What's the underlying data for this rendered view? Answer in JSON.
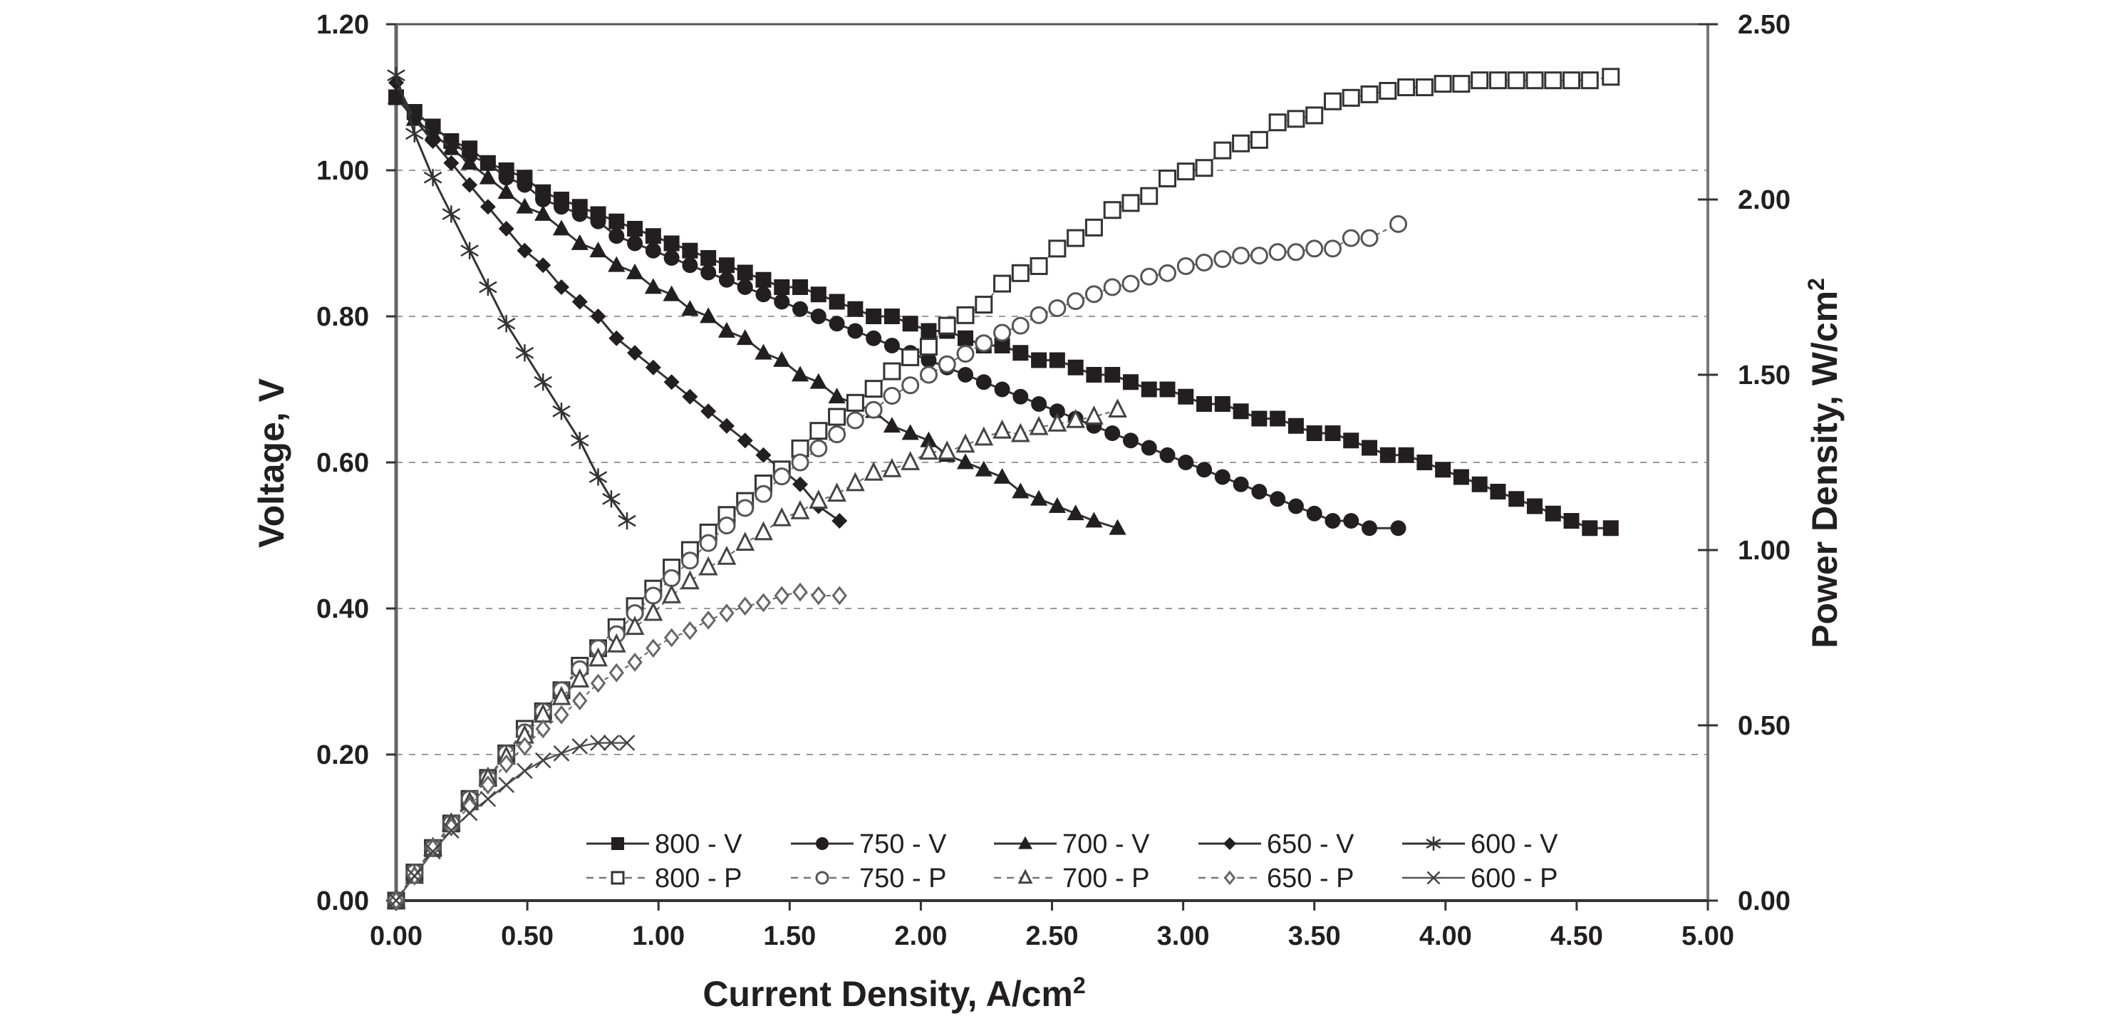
{
  "chart_data": {
    "type": "line",
    "title": "",
    "xlabel": "Current Density, A/cm",
    "xlabel_sup": "2",
    "ylabel": "Voltage, V",
    "y2label": "Power Density, W/cm",
    "y2label_sup": "2",
    "xlim": [
      0,
      5
    ],
    "ylim": [
      0,
      1.2
    ],
    "y2lim": [
      0,
      2.5
    ],
    "grid": "horizontal-dashed",
    "legend_position": "bottom-center",
    "x_ticks": [
      "0.00",
      "0.50",
      "1.00",
      "1.50",
      "2.00",
      "2.50",
      "3.00",
      "3.50",
      "4.00",
      "4.50",
      "5.00"
    ],
    "y_ticks": [
      "0.00",
      "0.20",
      "0.40",
      "0.60",
      "0.80",
      "1.00",
      "1.20"
    ],
    "y2_ticks": [
      "0.00",
      "0.50",
      "1.00",
      "1.50",
      "2.00",
      "2.50"
    ],
    "series": [
      {
        "name": "800 - V",
        "axis": "left",
        "marker": "square-filled",
        "line": "solid",
        "x": [
          0,
          0.07,
          0.14,
          0.21,
          0.28,
          0.35,
          0.42,
          0.49,
          0.56,
          0.63,
          0.7,
          0.77,
          0.84,
          0.91,
          0.98,
          1.05,
          1.12,
          1.19,
          1.26,
          1.33,
          1.4,
          1.47,
          1.54,
          1.61,
          1.68,
          1.75,
          1.82,
          1.89,
          1.96,
          2.03,
          2.1,
          2.17,
          2.24,
          2.31,
          2.38,
          2.45,
          2.52,
          2.59,
          2.66,
          2.73,
          2.8,
          2.87,
          2.94,
          3.01,
          3.08,
          3.15,
          3.22,
          3.29,
          3.36,
          3.43,
          3.5,
          3.57,
          3.64,
          3.71,
          3.78,
          3.85,
          3.92,
          3.99,
          4.06,
          4.13,
          4.2,
          4.27,
          4.34,
          4.41,
          4.48,
          4.55,
          4.63
        ],
        "y": [
          1.1,
          1.08,
          1.06,
          1.04,
          1.03,
          1.01,
          1.0,
          0.99,
          0.97,
          0.96,
          0.95,
          0.94,
          0.93,
          0.92,
          0.91,
          0.9,
          0.89,
          0.88,
          0.87,
          0.86,
          0.85,
          0.84,
          0.84,
          0.83,
          0.82,
          0.81,
          0.8,
          0.8,
          0.79,
          0.78,
          0.78,
          0.77,
          0.76,
          0.76,
          0.75,
          0.74,
          0.74,
          0.73,
          0.72,
          0.72,
          0.71,
          0.7,
          0.7,
          0.69,
          0.68,
          0.68,
          0.67,
          0.66,
          0.66,
          0.65,
          0.64,
          0.64,
          0.63,
          0.62,
          0.61,
          0.61,
          0.6,
          0.59,
          0.58,
          0.57,
          0.56,
          0.55,
          0.54,
          0.53,
          0.52,
          0.51,
          0.51
        ]
      },
      {
        "name": "750 - V",
        "axis": "left",
        "marker": "circle-filled",
        "line": "solid",
        "x": [
          0,
          0.07,
          0.14,
          0.21,
          0.28,
          0.35,
          0.42,
          0.49,
          0.56,
          0.63,
          0.7,
          0.77,
          0.84,
          0.91,
          0.98,
          1.05,
          1.12,
          1.19,
          1.26,
          1.33,
          1.4,
          1.47,
          1.54,
          1.61,
          1.68,
          1.75,
          1.82,
          1.89,
          1.96,
          2.03,
          2.1,
          2.17,
          2.24,
          2.31,
          2.38,
          2.45,
          2.52,
          2.59,
          2.66,
          2.73,
          2.8,
          2.87,
          2.94,
          3.01,
          3.08,
          3.15,
          3.22,
          3.29,
          3.36,
          3.43,
          3.5,
          3.57,
          3.64,
          3.71,
          3.82
        ],
        "y": [
          1.1,
          1.08,
          1.06,
          1.04,
          1.02,
          1.01,
          0.99,
          0.98,
          0.96,
          0.95,
          0.94,
          0.93,
          0.91,
          0.9,
          0.89,
          0.88,
          0.87,
          0.86,
          0.85,
          0.84,
          0.83,
          0.82,
          0.81,
          0.8,
          0.79,
          0.78,
          0.77,
          0.76,
          0.75,
          0.74,
          0.73,
          0.72,
          0.71,
          0.7,
          0.69,
          0.68,
          0.67,
          0.66,
          0.65,
          0.64,
          0.63,
          0.62,
          0.61,
          0.6,
          0.59,
          0.58,
          0.57,
          0.56,
          0.55,
          0.54,
          0.53,
          0.52,
          0.52,
          0.51,
          0.51
        ]
      },
      {
        "name": "700 - V",
        "axis": "left",
        "marker": "triangle-filled",
        "line": "solid",
        "x": [
          0,
          0.07,
          0.14,
          0.21,
          0.28,
          0.35,
          0.42,
          0.49,
          0.56,
          0.63,
          0.7,
          0.77,
          0.84,
          0.91,
          0.98,
          1.05,
          1.12,
          1.19,
          1.26,
          1.33,
          1.4,
          1.47,
          1.54,
          1.61,
          1.68,
          1.75,
          1.82,
          1.89,
          1.96,
          2.03,
          2.1,
          2.17,
          2.24,
          2.31,
          2.38,
          2.45,
          2.52,
          2.59,
          2.66,
          2.75
        ],
        "y": [
          1.1,
          1.07,
          1.05,
          1.03,
          1.01,
          0.99,
          0.97,
          0.95,
          0.94,
          0.92,
          0.9,
          0.89,
          0.87,
          0.86,
          0.84,
          0.83,
          0.81,
          0.8,
          0.78,
          0.77,
          0.75,
          0.74,
          0.72,
          0.71,
          0.69,
          0.68,
          0.67,
          0.65,
          0.64,
          0.63,
          0.61,
          0.6,
          0.59,
          0.58,
          0.56,
          0.55,
          0.54,
          0.53,
          0.52,
          0.51
        ]
      },
      {
        "name": "650 - V",
        "axis": "left",
        "marker": "diamond-filled",
        "line": "solid",
        "x": [
          0,
          0.07,
          0.14,
          0.21,
          0.28,
          0.35,
          0.42,
          0.49,
          0.56,
          0.63,
          0.7,
          0.77,
          0.84,
          0.91,
          0.98,
          1.05,
          1.12,
          1.19,
          1.26,
          1.33,
          1.4,
          1.47,
          1.54,
          1.61,
          1.69
        ],
        "y": [
          1.12,
          1.07,
          1.04,
          1.01,
          0.98,
          0.95,
          0.92,
          0.89,
          0.87,
          0.84,
          0.82,
          0.8,
          0.77,
          0.75,
          0.73,
          0.71,
          0.69,
          0.67,
          0.65,
          0.63,
          0.61,
          0.59,
          0.57,
          0.54,
          0.52
        ]
      },
      {
        "name": "600 - V",
        "axis": "left",
        "marker": "star",
        "line": "solid",
        "x": [
          0,
          0.07,
          0.14,
          0.21,
          0.28,
          0.35,
          0.42,
          0.49,
          0.56,
          0.63,
          0.7,
          0.77,
          0.82,
          0.88
        ],
        "y": [
          1.13,
          1.05,
          0.99,
          0.94,
          0.89,
          0.84,
          0.79,
          0.75,
          0.71,
          0.67,
          0.63,
          0.58,
          0.55,
          0.52
        ]
      },
      {
        "name": "800 - P",
        "axis": "right",
        "marker": "square-open",
        "line": "dashed",
        "x": [
          0,
          0.07,
          0.14,
          0.21,
          0.28,
          0.35,
          0.42,
          0.49,
          0.56,
          0.63,
          0.7,
          0.77,
          0.84,
          0.91,
          0.98,
          1.05,
          1.12,
          1.19,
          1.26,
          1.33,
          1.4,
          1.47,
          1.54,
          1.61,
          1.68,
          1.75,
          1.82,
          1.89,
          1.96,
          2.03,
          2.1,
          2.17,
          2.24,
          2.31,
          2.38,
          2.45,
          2.52,
          2.59,
          2.66,
          2.73,
          2.8,
          2.87,
          2.94,
          3.01,
          3.08,
          3.15,
          3.22,
          3.29,
          3.36,
          3.43,
          3.5,
          3.57,
          3.64,
          3.71,
          3.78,
          3.85,
          3.92,
          3.99,
          4.06,
          4.13,
          4.2,
          4.27,
          4.34,
          4.41,
          4.48,
          4.55,
          4.63
        ],
        "y": [
          0,
          0.08,
          0.15,
          0.22,
          0.29,
          0.35,
          0.42,
          0.49,
          0.54,
          0.6,
          0.67,
          0.72,
          0.78,
          0.84,
          0.89,
          0.95,
          1.0,
          1.05,
          1.1,
          1.14,
          1.19,
          1.23,
          1.29,
          1.34,
          1.38,
          1.42,
          1.46,
          1.51,
          1.55,
          1.58,
          1.64,
          1.67,
          1.7,
          1.76,
          1.79,
          1.81,
          1.86,
          1.89,
          1.92,
          1.97,
          1.99,
          2.01,
          2.06,
          2.08,
          2.09,
          2.14,
          2.16,
          2.17,
          2.22,
          2.23,
          2.24,
          2.28,
          2.29,
          2.3,
          2.31,
          2.32,
          2.32,
          2.33,
          2.33,
          2.34,
          2.34,
          2.34,
          2.34,
          2.34,
          2.34,
          2.34,
          2.35
        ]
      },
      {
        "name": "750 - P",
        "axis": "right",
        "marker": "circle-open",
        "line": "dashed",
        "x": [
          0,
          0.07,
          0.14,
          0.21,
          0.28,
          0.35,
          0.42,
          0.49,
          0.56,
          0.63,
          0.7,
          0.77,
          0.84,
          0.91,
          0.98,
          1.05,
          1.12,
          1.19,
          1.26,
          1.33,
          1.4,
          1.47,
          1.54,
          1.61,
          1.68,
          1.75,
          1.82,
          1.89,
          1.96,
          2.03,
          2.1,
          2.17,
          2.24,
          2.31,
          2.38,
          2.45,
          2.52,
          2.59,
          2.66,
          2.73,
          2.8,
          2.87,
          2.94,
          3.01,
          3.08,
          3.15,
          3.22,
          3.29,
          3.36,
          3.43,
          3.5,
          3.57,
          3.64,
          3.71,
          3.82
        ],
        "y": [
          0,
          0.08,
          0.15,
          0.22,
          0.29,
          0.35,
          0.42,
          0.48,
          0.54,
          0.6,
          0.66,
          0.72,
          0.76,
          0.82,
          0.87,
          0.92,
          0.97,
          1.02,
          1.07,
          1.12,
          1.16,
          1.21,
          1.25,
          1.29,
          1.33,
          1.37,
          1.4,
          1.44,
          1.47,
          1.5,
          1.53,
          1.56,
          1.59,
          1.62,
          1.64,
          1.67,
          1.69,
          1.71,
          1.73,
          1.75,
          1.76,
          1.78,
          1.79,
          1.81,
          1.82,
          1.83,
          1.84,
          1.84,
          1.85,
          1.85,
          1.86,
          1.86,
          1.89,
          1.89,
          1.93
        ]
      },
      {
        "name": "700 - P",
        "axis": "right",
        "marker": "triangle-open",
        "line": "dashed",
        "x": [
          0,
          0.07,
          0.14,
          0.21,
          0.28,
          0.35,
          0.42,
          0.49,
          0.56,
          0.63,
          0.7,
          0.77,
          0.84,
          0.91,
          0.98,
          1.05,
          1.12,
          1.19,
          1.26,
          1.33,
          1.4,
          1.47,
          1.54,
          1.61,
          1.68,
          1.75,
          1.82,
          1.89,
          1.96,
          2.03,
          2.1,
          2.17,
          2.24,
          2.31,
          2.38,
          2.45,
          2.52,
          2.59,
          2.66,
          2.75
        ],
        "y": [
          0,
          0.07,
          0.15,
          0.22,
          0.28,
          0.35,
          0.41,
          0.47,
          0.53,
          0.58,
          0.63,
          0.69,
          0.73,
          0.78,
          0.82,
          0.87,
          0.91,
          0.95,
          0.98,
          1.02,
          1.05,
          1.09,
          1.11,
          1.14,
          1.16,
          1.19,
          1.22,
          1.23,
          1.25,
          1.28,
          1.28,
          1.3,
          1.32,
          1.34,
          1.33,
          1.35,
          1.36,
          1.37,
          1.38,
          1.4
        ]
      },
      {
        "name": "650 - P",
        "axis": "right",
        "marker": "diamond-open",
        "line": "dashed",
        "x": [
          0,
          0.07,
          0.14,
          0.21,
          0.28,
          0.35,
          0.42,
          0.49,
          0.56,
          0.63,
          0.7,
          0.77,
          0.84,
          0.91,
          0.98,
          1.05,
          1.12,
          1.19,
          1.26,
          1.33,
          1.4,
          1.47,
          1.54,
          1.61,
          1.69
        ],
        "y": [
          0,
          0.07,
          0.15,
          0.21,
          0.27,
          0.33,
          0.39,
          0.44,
          0.49,
          0.53,
          0.57,
          0.62,
          0.65,
          0.68,
          0.72,
          0.75,
          0.77,
          0.8,
          0.82,
          0.84,
          0.85,
          0.87,
          0.88,
          0.87,
          0.87
        ]
      },
      {
        "name": "600 - P",
        "axis": "right",
        "marker": "x",
        "line": "solid-gray",
        "x": [
          0,
          0.07,
          0.14,
          0.21,
          0.28,
          0.35,
          0.42,
          0.49,
          0.56,
          0.63,
          0.7,
          0.77,
          0.82,
          0.88
        ],
        "y": [
          0,
          0.07,
          0.14,
          0.2,
          0.25,
          0.29,
          0.33,
          0.37,
          0.4,
          0.42,
          0.44,
          0.45,
          0.45,
          0.45
        ]
      }
    ]
  }
}
